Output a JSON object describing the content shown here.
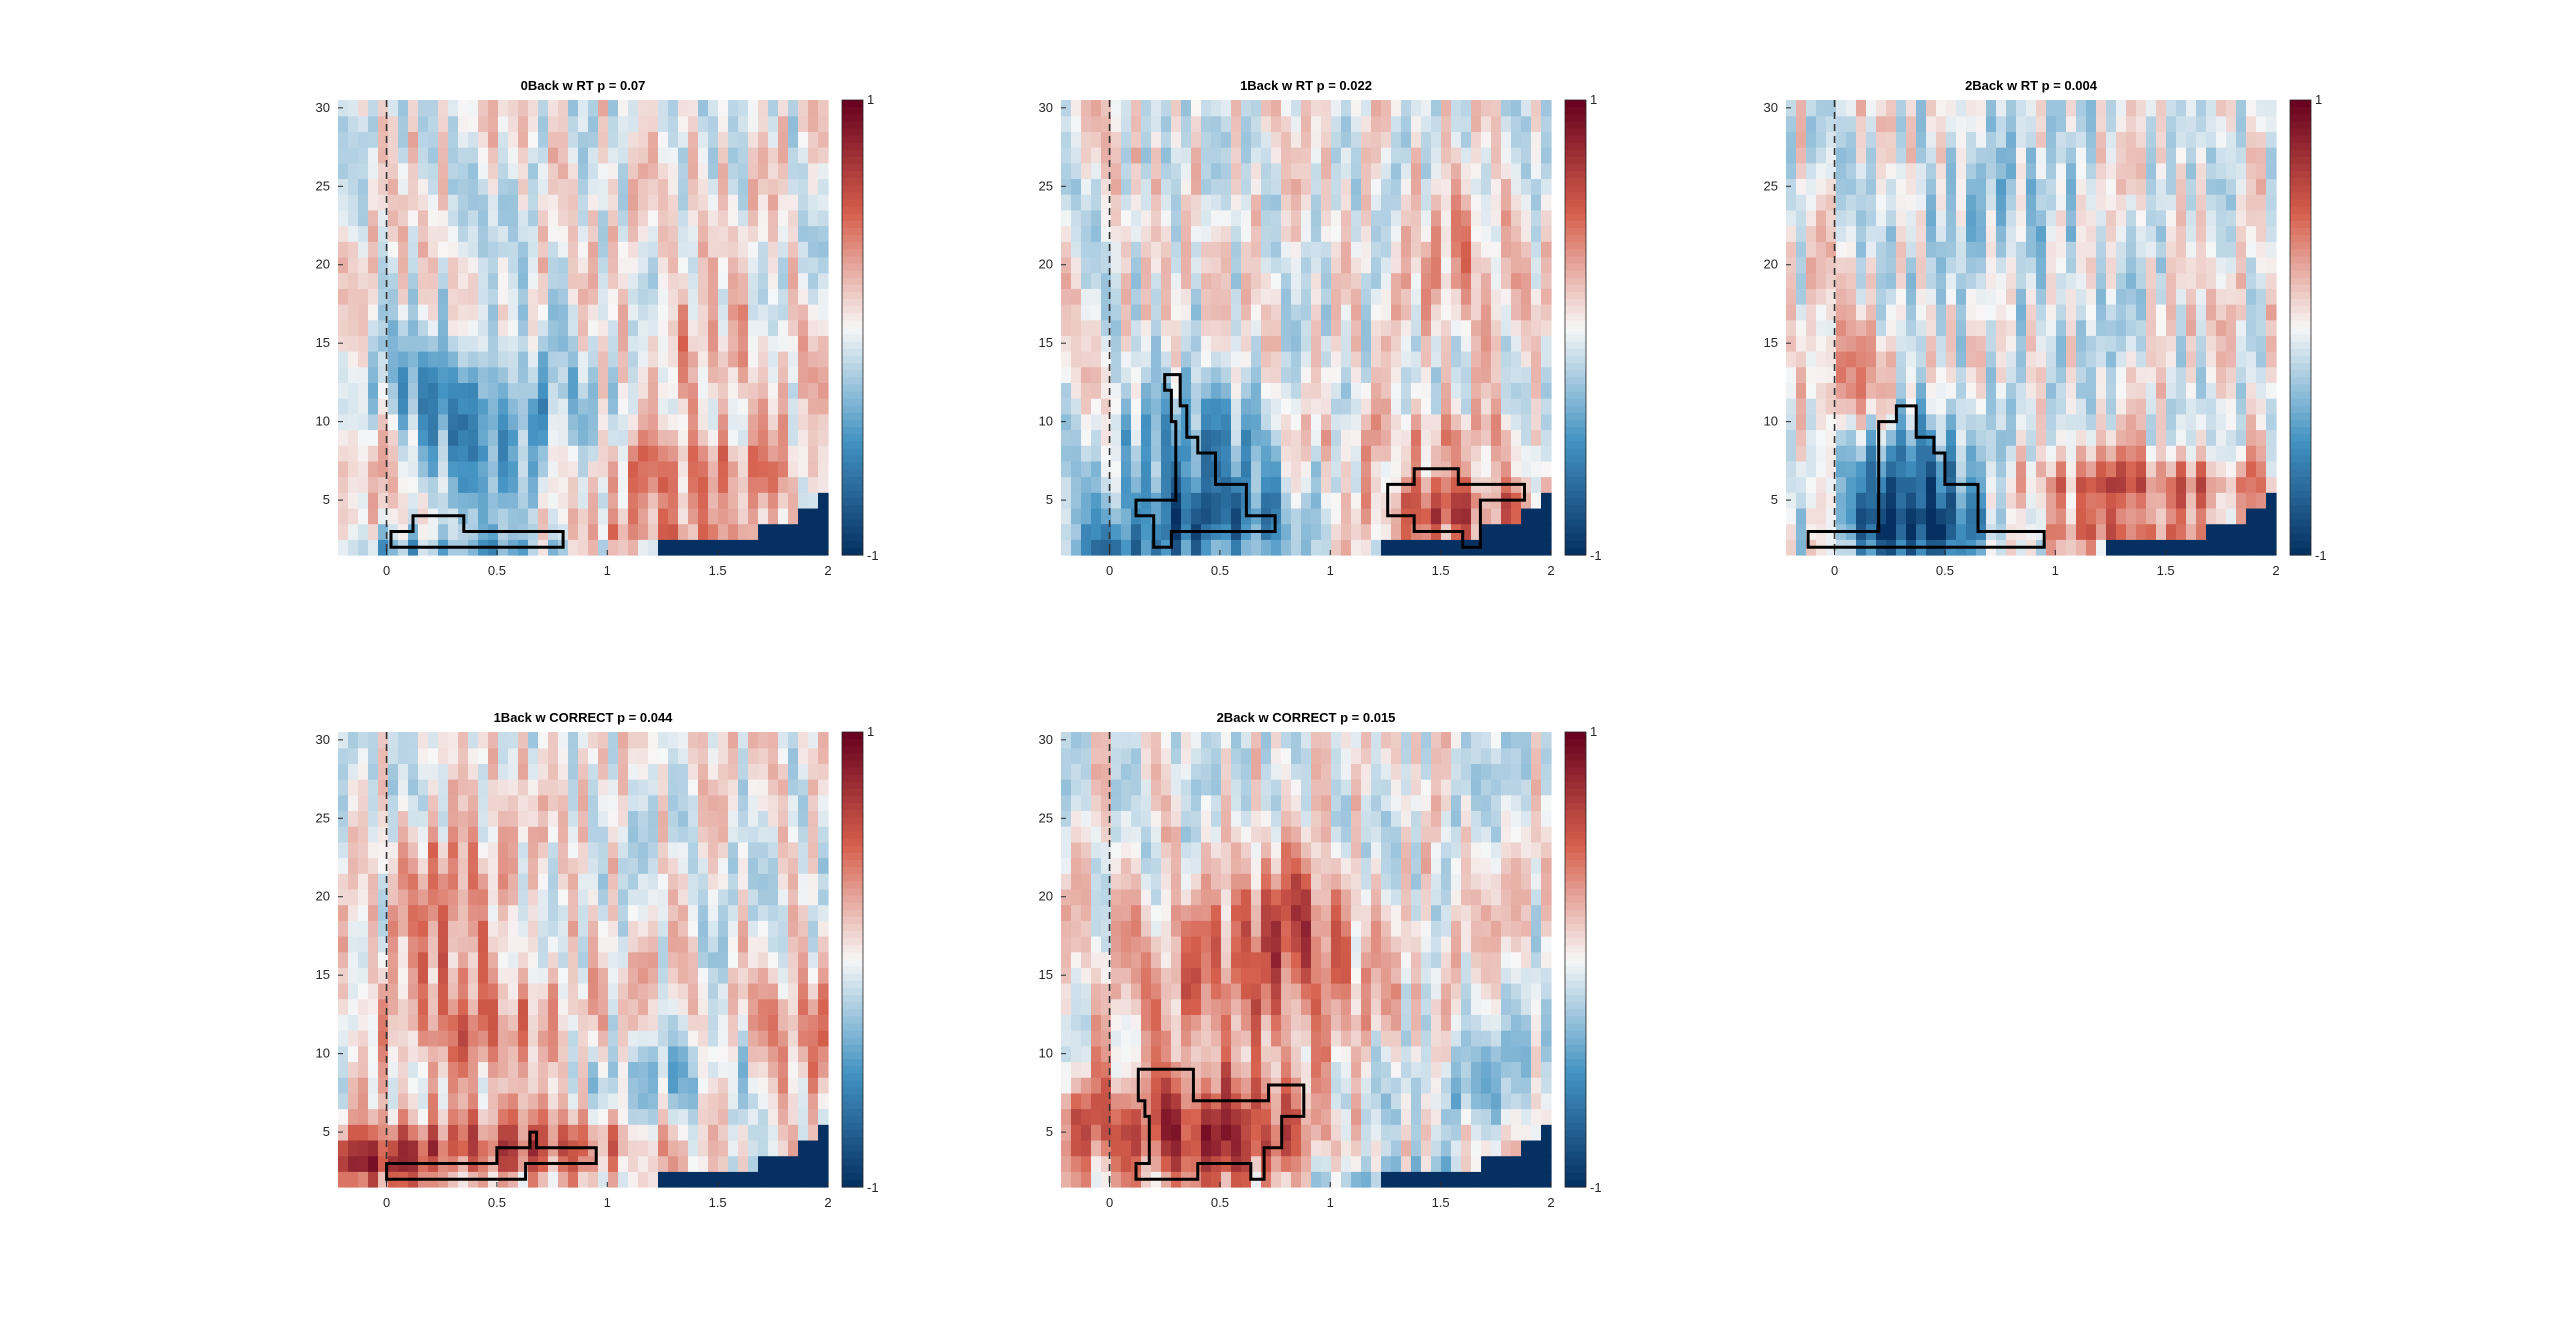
{
  "figure": {
    "panels": [
      {
        "id": "p1",
        "title": "0Back w RT p = 0.07",
        "seed": 11
      },
      {
        "id": "p2",
        "title": "1Back w RT p = 0.022",
        "seed": 23
      },
      {
        "id": "p3",
        "title": "2Back w RT p = 0.004",
        "seed": 37
      },
      {
        "id": "p4",
        "title": "1Back w CORRECT p = 0.044",
        "seed": 41
      },
      {
        "id": "p5",
        "title": "2Back w CORRECT p = 0.015",
        "seed": 53
      }
    ],
    "colors": {
      "negative_max": "#053061",
      "negative_mid": "#4393c3",
      "neutral": "#f7f7f7",
      "positive_mid": "#d6604d",
      "positive_max": "#67001f",
      "contour": "#000000",
      "axis_text": "#262626"
    }
  },
  "chart_data": [
    {
      "type": "heatmap",
      "title": "0Back w RT p = 0.07",
      "xlabel": "",
      "ylabel": "",
      "xlim": [
        -0.22,
        2.0
      ],
      "ylim": [
        1.5,
        30.5
      ],
      "x_ticks": [
        "0",
        "0.5",
        "1",
        "1.5",
        "2"
      ],
      "y_ticks": [
        "5",
        "10",
        "15",
        "20",
        "25",
        "30"
      ],
      "colorbar": {
        "min": -1,
        "max": 1,
        "labels": [
          "1",
          "-1"
        ]
      },
      "event_marker_x": 0,
      "significant_clusters": [
        {
          "sign": "negative",
          "outline": [
            [
              0.02,
              2
            ],
            [
              0.02,
              3
            ],
            [
              0.12,
              3
            ],
            [
              0.12,
              4
            ],
            [
              0.35,
              4
            ],
            [
              0.35,
              3
            ],
            [
              0.8,
              3
            ],
            [
              0.8,
              2
            ]
          ]
        }
      ],
      "blobs": [
        {
          "x": 0.5,
          "y": 9,
          "sx": 0.35,
          "sy": 4,
          "a": -0.35
        },
        {
          "x": 0.3,
          "y": 12,
          "sx": 0.3,
          "sy": 3,
          "a": -0.3
        },
        {
          "x": 1.35,
          "y": 7,
          "sx": 0.45,
          "sy": 1.8,
          "a": 0.35
        },
        {
          "x": 1.45,
          "y": 14,
          "sx": 0.25,
          "sy": 2.5,
          "a": 0.3
        },
        {
          "x": -0.15,
          "y": 8,
          "sx": 0.15,
          "sy": 2.5,
          "a": 0.4
        },
        {
          "x": 0.2,
          "y": 2,
          "sx": 0.5,
          "sy": 0.8,
          "a": -0.3
        },
        {
          "x": 1.2,
          "y": 3,
          "sx": 0.4,
          "sy": 1,
          "a": 0.3
        }
      ]
    },
    {
      "type": "heatmap",
      "title": "1Back w RT p = 0.022",
      "xlabel": "",
      "ylabel": "",
      "xlim": [
        -0.22,
        2.0
      ],
      "ylim": [
        1.5,
        30.5
      ],
      "x_ticks": [
        "0",
        "0.5",
        "1",
        "1.5",
        "2"
      ],
      "y_ticks": [
        "5",
        "10",
        "15",
        "20",
        "25",
        "30"
      ],
      "colorbar": {
        "min": -1,
        "max": 1,
        "labels": [
          "1",
          "-1"
        ]
      },
      "event_marker_x": 0,
      "significant_clusters": [
        {
          "sign": "negative",
          "outline": [
            [
              0.25,
              13
            ],
            [
              0.32,
              13
            ],
            [
              0.32,
              11
            ],
            [
              0.35,
              11
            ],
            [
              0.35,
              9
            ],
            [
              0.4,
              9
            ],
            [
              0.4,
              8
            ],
            [
              0.48,
              8
            ],
            [
              0.48,
              6
            ],
            [
              0.62,
              6
            ],
            [
              0.62,
              4
            ],
            [
              0.75,
              4
            ],
            [
              0.75,
              3
            ],
            [
              0.28,
              3
            ],
            [
              0.28,
              2
            ],
            [
              0.2,
              2
            ],
            [
              0.2,
              4
            ],
            [
              0.12,
              4
            ],
            [
              0.12,
              5
            ],
            [
              0.3,
              5
            ],
            [
              0.3,
              10
            ],
            [
              0.28,
              10
            ],
            [
              0.28,
              12
            ],
            [
              0.25,
              12
            ]
          ]
        },
        {
          "sign": "positive",
          "outline": [
            [
              1.38,
              7
            ],
            [
              1.58,
              7
            ],
            [
              1.58,
              6
            ],
            [
              1.88,
              6
            ],
            [
              1.88,
              5
            ],
            [
              1.68,
              5
            ],
            [
              1.68,
              2
            ],
            [
              1.6,
              2
            ],
            [
              1.6,
              3
            ],
            [
              1.38,
              3
            ],
            [
              1.38,
              4
            ],
            [
              1.26,
              4
            ],
            [
              1.26,
              6
            ],
            [
              1.38,
              6
            ]
          ]
        }
      ],
      "blobs": [
        {
          "x": 0.4,
          "y": 7,
          "sx": 0.3,
          "sy": 4,
          "a": -0.5
        },
        {
          "x": 0.45,
          "y": 3.5,
          "sx": 0.3,
          "sy": 1.5,
          "a": -0.45
        },
        {
          "x": 1.55,
          "y": 4.5,
          "sx": 0.3,
          "sy": 1.6,
          "a": 0.55
        },
        {
          "x": 1.4,
          "y": 9,
          "sx": 0.4,
          "sy": 1.2,
          "a": 0.25
        },
        {
          "x": 0.0,
          "y": 2,
          "sx": 0.25,
          "sy": 0.8,
          "a": -0.35
        },
        {
          "x": 1.6,
          "y": 20,
          "sx": 0.15,
          "sy": 3,
          "a": 0.3
        }
      ]
    },
    {
      "type": "heatmap",
      "title": "2Back w RT p = 0.004",
      "xlabel": "",
      "ylabel": "",
      "xlim": [
        -0.22,
        2.0
      ],
      "ylim": [
        1.5,
        30.5
      ],
      "x_ticks": [
        "0",
        "0.5",
        "1",
        "1.5",
        "2"
      ],
      "y_ticks": [
        "5",
        "10",
        "15",
        "20",
        "25",
        "30"
      ],
      "colorbar": {
        "min": -1,
        "max": 1,
        "labels": [
          "1",
          "-1"
        ]
      },
      "event_marker_x": 0,
      "significant_clusters": [
        {
          "sign": "negative",
          "outline": [
            [
              -0.12,
              2
            ],
            [
              -0.12,
              3
            ],
            [
              0.2,
              3
            ],
            [
              0.2,
              10
            ],
            [
              0.28,
              10
            ],
            [
              0.28,
              11
            ],
            [
              0.37,
              11
            ],
            [
              0.37,
              9
            ],
            [
              0.45,
              9
            ],
            [
              0.45,
              8
            ],
            [
              0.5,
              8
            ],
            [
              0.5,
              6
            ],
            [
              0.65,
              6
            ],
            [
              0.65,
              3
            ],
            [
              0.95,
              3
            ],
            [
              0.95,
              2
            ]
          ]
        }
      ],
      "blobs": [
        {
          "x": 0.35,
          "y": 6,
          "sx": 0.2,
          "sy": 3,
          "a": -0.8
        },
        {
          "x": 0.4,
          "y": 3,
          "sx": 0.3,
          "sy": 1.3,
          "a": -0.5
        },
        {
          "x": 1.45,
          "y": 6,
          "sx": 0.45,
          "sy": 1.3,
          "a": 0.5
        },
        {
          "x": 1.3,
          "y": 3,
          "sx": 0.3,
          "sy": 0.8,
          "a": 0.45
        },
        {
          "x": 0.05,
          "y": 12,
          "sx": 0.12,
          "sy": 2.5,
          "a": 0.4
        },
        {
          "x": 0.8,
          "y": 22,
          "sx": 0.35,
          "sy": 5,
          "a": -0.2
        }
      ]
    },
    {
      "type": "heatmap",
      "title": "1Back w CORRECT p = 0.044",
      "xlabel": "",
      "ylabel": "",
      "xlim": [
        -0.22,
        2.0
      ],
      "ylim": [
        1.5,
        30.5
      ],
      "x_ticks": [
        "0",
        "0.5",
        "1",
        "1.5",
        "2"
      ],
      "y_ticks": [
        "5",
        "10",
        "15",
        "20",
        "25",
        "30"
      ],
      "colorbar": {
        "min": -1,
        "max": 1,
        "labels": [
          "1",
          "-1"
        ]
      },
      "event_marker_x": 0,
      "significant_clusters": [
        {
          "sign": "positive",
          "outline": [
            [
              0.0,
              2
            ],
            [
              0.0,
              3
            ],
            [
              0.5,
              3
            ],
            [
              0.5,
              4
            ],
            [
              0.65,
              4
            ],
            [
              0.65,
              5
            ],
            [
              0.68,
              5
            ],
            [
              0.68,
              4
            ],
            [
              0.95,
              4
            ],
            [
              0.95,
              3
            ],
            [
              0.63,
              3
            ],
            [
              0.63,
              2
            ]
          ]
        }
      ],
      "blobs": [
        {
          "x": 0.5,
          "y": 4,
          "sx": 0.6,
          "sy": 1.5,
          "a": 0.55
        },
        {
          "x": 0.3,
          "y": 20,
          "sx": 0.15,
          "sy": 3,
          "a": 0.45
        },
        {
          "x": 0.4,
          "y": 12,
          "sx": 0.4,
          "sy": 3,
          "a": 0.4
        },
        {
          "x": 1.9,
          "y": 11,
          "sx": 0.15,
          "sy": 3,
          "a": 0.4
        },
        {
          "x": 1.2,
          "y": 9,
          "sx": 0.4,
          "sy": 2,
          "a": -0.25
        },
        {
          "x": -0.1,
          "y": 3,
          "sx": 0.2,
          "sy": 1,
          "a": 0.4
        }
      ]
    },
    {
      "type": "heatmap",
      "title": "2Back w CORRECT p = 0.015",
      "xlabel": "",
      "ylabel": "",
      "xlim": [
        -0.22,
        2.0
      ],
      "ylim": [
        1.5,
        30.5
      ],
      "x_ticks": [
        "0",
        "0.5",
        "1",
        "1.5",
        "2"
      ],
      "y_ticks": [
        "5",
        "10",
        "15",
        "20",
        "25",
        "30"
      ],
      "colorbar": {
        "min": -1,
        "max": 1,
        "labels": [
          "1",
          "-1"
        ]
      },
      "event_marker_x": 0,
      "significant_clusters": [
        {
          "sign": "positive",
          "outline": [
            [
              0.13,
              9
            ],
            [
              0.38,
              9
            ],
            [
              0.38,
              7
            ],
            [
              0.72,
              7
            ],
            [
              0.72,
              8
            ],
            [
              0.88,
              8
            ],
            [
              0.88,
              6
            ],
            [
              0.78,
              6
            ],
            [
              0.78,
              4
            ],
            [
              0.7,
              4
            ],
            [
              0.7,
              2
            ],
            [
              0.64,
              2
            ],
            [
              0.64,
              3
            ],
            [
              0.4,
              3
            ],
            [
              0.4,
              2
            ],
            [
              0.12,
              2
            ],
            [
              0.12,
              3
            ],
            [
              0.18,
              3
            ],
            [
              0.18,
              6
            ],
            [
              0.16,
              6
            ],
            [
              0.16,
              7
            ],
            [
              0.13,
              7
            ]
          ]
        }
      ],
      "blobs": [
        {
          "x": 0.45,
          "y": 5,
          "sx": 0.35,
          "sy": 2.5,
          "a": 0.7
        },
        {
          "x": 0.6,
          "y": 14,
          "sx": 0.4,
          "sy": 4,
          "a": 0.45
        },
        {
          "x": 0.85,
          "y": 19,
          "sx": 0.15,
          "sy": 3,
          "a": 0.4
        },
        {
          "x": -0.1,
          "y": 6,
          "sx": 0.15,
          "sy": 2,
          "a": 0.35
        },
        {
          "x": 1.3,
          "y": 2,
          "sx": 0.35,
          "sy": 0.8,
          "a": -0.35
        },
        {
          "x": 1.6,
          "y": 8,
          "sx": 0.35,
          "sy": 2,
          "a": -0.2
        }
      ]
    }
  ]
}
